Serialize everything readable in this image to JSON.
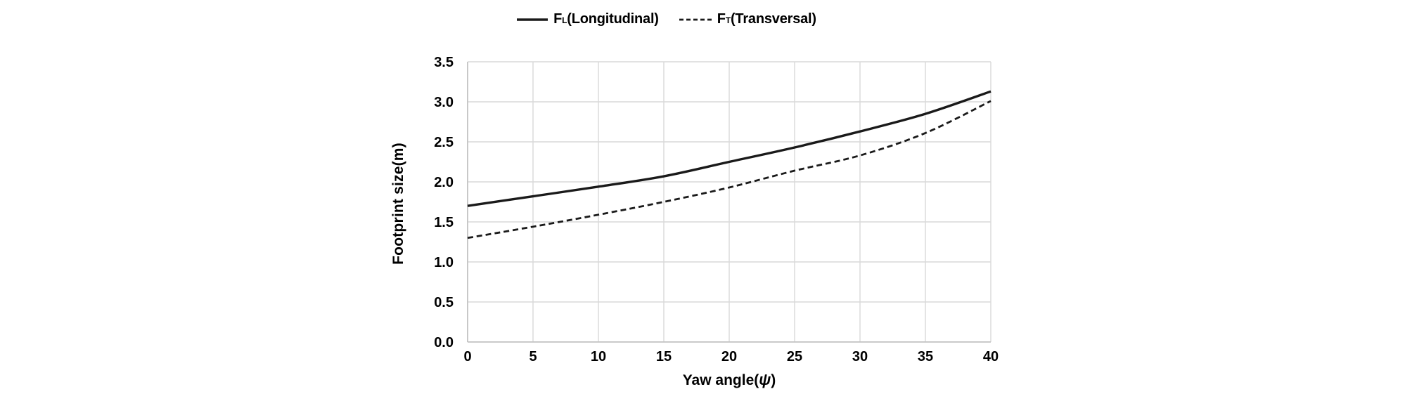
{
  "page": {
    "background": "#ffffff"
  },
  "chart_data": {
    "type": "line",
    "title": "",
    "ylabel": "Footprint size(m)",
    "xlabel_prefix": "Yaw angle(",
    "xlabel_symbol": "ψ",
    "xlabel_suffix": ")",
    "x": [
      0,
      5,
      10,
      15,
      20,
      25,
      30,
      35,
      40
    ],
    "x_tick_labels": [
      "0",
      "5",
      "10",
      "15",
      "20",
      "25",
      "30",
      "35",
      "40"
    ],
    "y_ticks": [
      0.0,
      0.5,
      1.0,
      1.5,
      2.0,
      2.5,
      3.0,
      3.5
    ],
    "y_tick_labels": [
      "0.0",
      "0.5",
      "1.0",
      "1.5",
      "2.0",
      "2.5",
      "3.0",
      "3.5"
    ],
    "xlim": [
      0,
      40
    ],
    "ylim": [
      0.0,
      3.5
    ],
    "grid": true,
    "legend_position": "top-center",
    "legend": [
      {
        "prefix": "F",
        "sub": "L",
        "rest": "(Longitudinal)",
        "style": "solid"
      },
      {
        "prefix": "F",
        "sub": "T",
        "rest": "(Transversal)",
        "style": "dashed"
      }
    ],
    "series": [
      {
        "name": "FL(Longitudinal)",
        "line_style": "solid",
        "color": "#1a1a1a",
        "values": [
          1.7,
          1.82,
          1.94,
          2.07,
          2.25,
          2.43,
          2.63,
          2.85,
          3.13
        ]
      },
      {
        "name": "FT(Transversal)",
        "line_style": "dashed",
        "color": "#1a1a1a",
        "values": [
          1.3,
          1.44,
          1.59,
          1.75,
          1.93,
          2.14,
          2.33,
          2.61,
          3.01
        ]
      }
    ],
    "colors": {
      "gridline": "#d9d9d9",
      "axis_line": "#bfbfbf",
      "text": "#000000",
      "line": "#1a1a1a"
    }
  }
}
